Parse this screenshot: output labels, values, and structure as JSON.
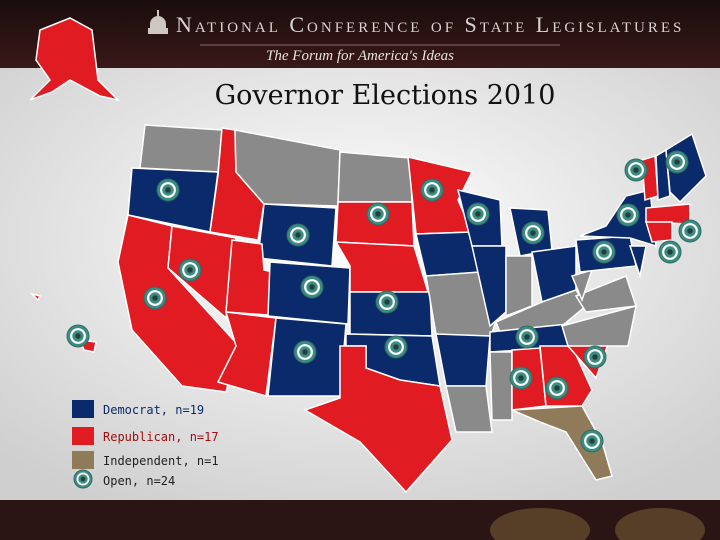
{
  "header": {
    "organization": "National Conference of State Legislatures",
    "tagline": "The Forum for America's Ideas"
  },
  "title": "Governor Elections 2010",
  "legend": [
    {
      "label": "Democrat, n=19",
      "color": "#0b2a6b"
    },
    {
      "label": "Republican, n=17",
      "color": "#e11b22"
    },
    {
      "label": "Independent, n=1",
      "color": "#8f7a5a"
    },
    {
      "label": "Open, n=24",
      "color": "#3c8c82"
    }
  ]
}
